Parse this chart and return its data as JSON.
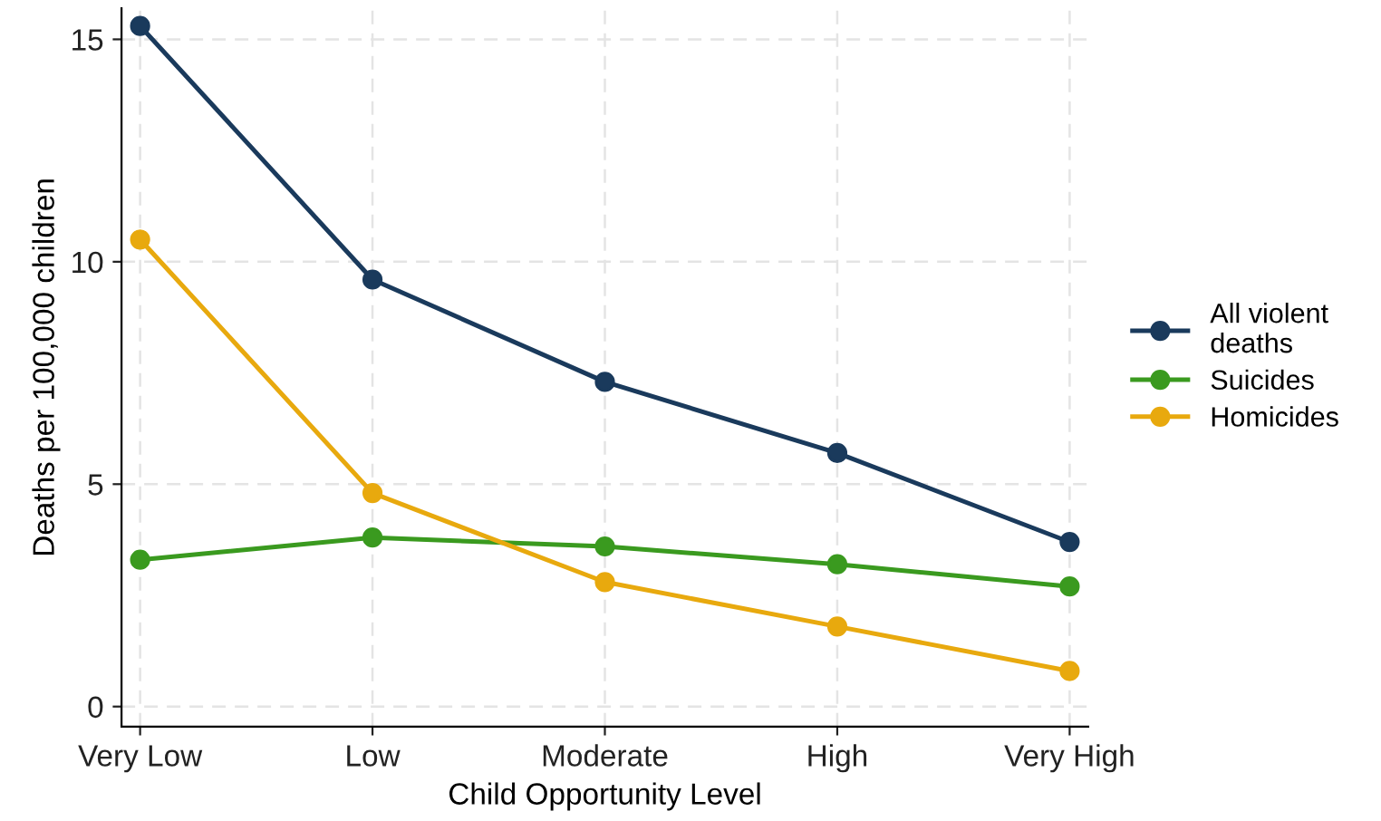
{
  "chart_data": {
    "type": "line",
    "xlabel": "Child Opportunity Level",
    "ylabel": "Deaths per 100,000 children",
    "categories": [
      "Very Low",
      "Low",
      "Moderate",
      "High",
      "Very High"
    ],
    "series": [
      {
        "name": "All violent\ndeaths",
        "color": "#1a3a5c",
        "values": [
          15.3,
          9.6,
          7.3,
          5.7,
          3.7
        ]
      },
      {
        "name": "Suicides",
        "color": "#3a9a1f",
        "values": [
          3.3,
          3.8,
          3.6,
          3.2,
          2.7
        ]
      },
      {
        "name": "Homicides",
        "color": "#e8a90e",
        "values": [
          10.5,
          4.8,
          2.8,
          1.8,
          0.8
        ]
      }
    ],
    "ylim": [
      -0.45,
      15.7
    ],
    "yticks": [
      0,
      5,
      10,
      15
    ],
    "grid": true,
    "legend": "right",
    "marker": "circle",
    "line_style": "solid"
  }
}
